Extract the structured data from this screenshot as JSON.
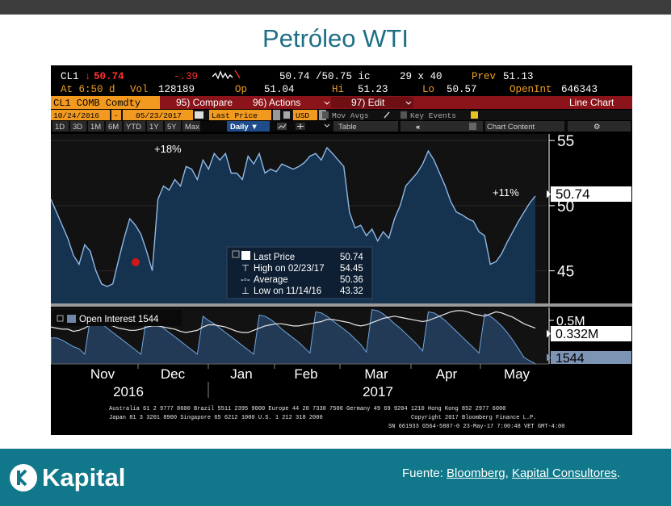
{
  "page": {
    "title": "Petróleo WTI"
  },
  "terminal": {
    "row1": {
      "ticker": "CL1",
      "arrow": "↓",
      "last": "50.74",
      "chg": "-.39",
      "bid_ask": "50.74 /50.75 ic",
      "size": "29 x 40",
      "prev_label": "Prev",
      "prev": "51.13"
    },
    "row2": {
      "at": "At 6:50 d",
      "vol_label": "Vol",
      "vol": "128189",
      "op_label": "Op",
      "op": "51.04",
      "hi_label": "Hi",
      "hi": "51.23",
      "lo_label": "Lo",
      "lo": "50.57",
      "oi_label": "OpenInt",
      "oi": "646343"
    },
    "toolbar": {
      "security": "CL1 COMB Comdty",
      "compare": "95) Compare",
      "actions": "96) Actions",
      "edit": "97) Edit",
      "chart_type": "Line Chart"
    },
    "controls": {
      "date_from": "10/24/2016",
      "date_to": "05/23/2017",
      "field": "Last Price",
      "currency": "USD",
      "mov_avgs": "Mov Avgs",
      "key_events": "Key Events"
    },
    "periods": [
      "1D",
      "3D",
      "1M",
      "6M",
      "YTD",
      "1Y",
      "5Y",
      "Max"
    ],
    "frequency": "Daily ▼",
    "table_label": "Table",
    "chart_content_label": "Chart Content",
    "legend": {
      "last_price_label": "Last Price",
      "last_price_value": "50.74",
      "high_label": "High on 02/23/17",
      "high_value": "54.45",
      "avg_label": "Average",
      "avg_value": "50.36",
      "low_label": "Low on 11/14/16",
      "low_value": "43.32"
    },
    "oi_legend": "Open Interest 1544",
    "annotations": {
      "pct1": "+18%",
      "pct2": "+11%"
    },
    "footer": {
      "line1": "Australia 61 2 9777 8600 Brazil 5511 2395 9000 Europe 44 20 7330 7500 Germany 49 69 9204 1210 Hong Kong 852 2977 6000",
      "line2a": "Japan 81 3 3201 8900     Singapore 65 6212 1000     U.S. 1 212 318 2000",
      "line2b": "Copyright 2017 Bloomberg Finance L.P.",
      "line3": "SN 661933 G564-5807-0 23-May-17  7:00:48 VET  GMT-4:00"
    }
  },
  "chart_data": [
    {
      "type": "area",
      "series": [
        {
          "name": "Last Price",
          "values": [
            50.5,
            49.5,
            48.5,
            47.5,
            46.2,
            45.5,
            47.0,
            46.5,
            45.0,
            44.0,
            43.8,
            44.0,
            45.8,
            47.5,
            49.0,
            48.5,
            47.8,
            46.5,
            45.0,
            50.5,
            51.5,
            51.2,
            52.0,
            51.5,
            53.0,
            52.8,
            52.0,
            53.5,
            52.8,
            54.0,
            53.5,
            54.0,
            52.5,
            52.5,
            52.0,
            53.8,
            53.2,
            54.0,
            52.5,
            52.8,
            52.6,
            53.2,
            53.0,
            52.8,
            53.0,
            53.3,
            53.8,
            54.0,
            53.5,
            54.45,
            54.0,
            53.5,
            53.0,
            49.5,
            48.3,
            48.5,
            47.7,
            48.2,
            47.3,
            48.0,
            47.5,
            49.0,
            50.0,
            51.5,
            52.0,
            52.5,
            53.2,
            54.2,
            53.5,
            52.5,
            51.5,
            50.3,
            49.5,
            49.3,
            49.0,
            48.8,
            48.0,
            47.7,
            45.5,
            45.7,
            46.3,
            47.2,
            48.0,
            48.8,
            49.5,
            50.2,
            50.74
          ]
        }
      ],
      "annotations": [
        "+18%",
        "+11%"
      ],
      "y_ticks": [
        "55",
        "50",
        "45"
      ],
      "last_value_label": "50.74",
      "x_labels": [
        "Nov",
        "Dec",
        "Jan",
        "Feb",
        "Mar",
        "Apr",
        "May"
      ],
      "year_labels": [
        "2016",
        "2017"
      ],
      "ylim": [
        42.5,
        55.5
      ]
    },
    {
      "type": "area",
      "series": [
        {
          "name": "Open Interest",
          "values": [
            0.24,
            0.24,
            0.22,
            0.19,
            0.16,
            0.14,
            0.09,
            0.42,
            0.4,
            0.37,
            0.33,
            0.29,
            0.25,
            0.21,
            0.17,
            0.13,
            0.09,
            0.44,
            0.4,
            0.37,
            0.33,
            0.29,
            0.25,
            0.21,
            0.17,
            0.13,
            0.09,
            0.44,
            0.4,
            0.37,
            0.33,
            0.29,
            0.25,
            0.21,
            0.17,
            0.13,
            0.09,
            0.45,
            0.44,
            0.41,
            0.37,
            0.32,
            0.28,
            0.24,
            0.2,
            0.15,
            0.1,
            0.48,
            0.47,
            0.44,
            0.4,
            0.36,
            0.32,
            0.28,
            0.23,
            0.18,
            0.11,
            0.5,
            0.49,
            0.46,
            0.42,
            0.37,
            0.33,
            0.28,
            0.23,
            0.18,
            0.12,
            0.48,
            0.47,
            0.44,
            0.4,
            0.35,
            0.3,
            0.25,
            0.2,
            0.15,
            0.1,
            0.46,
            0.44,
            0.4,
            0.35,
            0.29,
            0.22,
            0.14,
            0.06,
            0.03,
            0.002
          ]
        }
      ],
      "line_series": [
        0.34,
        0.33,
        0.32,
        0.32,
        0.3,
        0.31,
        0.33,
        0.36,
        0.37,
        0.37,
        0.36,
        0.35,
        0.33,
        0.32,
        0.31,
        0.31,
        0.32,
        0.34,
        0.35,
        0.35,
        0.34,
        0.33,
        0.32,
        0.3,
        0.29,
        0.3,
        0.31,
        0.34,
        0.36,
        0.36,
        0.35,
        0.34,
        0.32,
        0.3,
        0.29,
        0.29,
        0.31,
        0.33,
        0.35,
        0.36,
        0.37,
        0.37,
        0.36,
        0.35,
        0.35,
        0.36,
        0.37,
        0.38,
        0.39,
        0.41,
        0.41,
        0.4,
        0.39,
        0.38,
        0.36,
        0.35,
        0.36,
        0.38,
        0.4,
        0.42,
        0.43,
        0.44,
        0.43,
        0.42,
        0.41,
        0.4,
        0.39,
        0.4,
        0.42,
        0.44,
        0.46,
        0.48,
        0.49,
        0.49,
        0.48,
        0.46,
        0.45,
        0.44,
        0.46,
        0.48,
        0.47,
        0.45,
        0.43,
        0.4,
        0.37,
        0.35,
        0.33
      ],
      "y_ticks": [
        "0.5M"
      ],
      "last_value_label": "0.332M",
      "oi_value_label": "1544",
      "ylim": [
        0,
        0.52
      ]
    }
  ],
  "footer": {
    "brand": "Kapital",
    "source_prefix": "Fuente: ",
    "source_a": "Bloomberg",
    "source_sep": ", ",
    "source_b": "Kapital Consultores",
    "source_end": "."
  }
}
